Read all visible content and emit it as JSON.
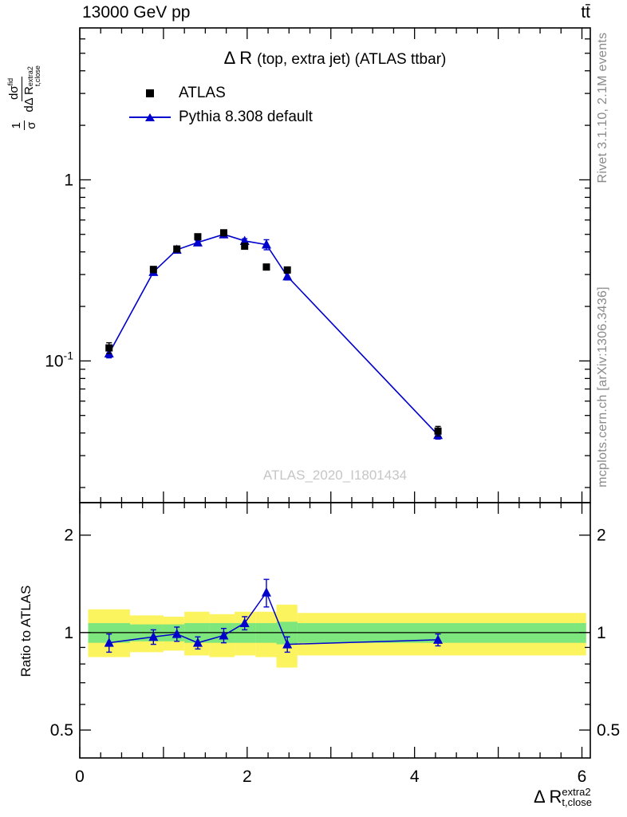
{
  "header": {
    "left_title": "13000 GeV pp",
    "right_title": "tt̄"
  },
  "captions": {
    "rivet": "Rivet 3.1.10,  2.1M events",
    "mcplots": "mcplots.cern.ch [arXiv:1306.3436]"
  },
  "main": {
    "title_symbol": "Δ R",
    "title_rest": "(top, extra jet) (ATLAS ttbar)",
    "watermark": "ATLAS_2020_I1801434",
    "legend": [
      {
        "label": "ATLAS",
        "marker": "black-square"
      },
      {
        "label": "Pythia 8.308 default",
        "marker": "blue-line-triangle"
      }
    ]
  },
  "ratio": {
    "ylabel": "Ratio to ATLAS"
  },
  "axis_labels": {
    "y_frac1_num": "1",
    "y_frac1_den": "σ",
    "y_frac2_num_base": "dσ",
    "y_frac2_num_sup": "fid",
    "y_frac2_den_base": "dΔ R",
    "y_frac2_den_sub": "t,close",
    "y_frac2_den_sup": "extra2",
    "x_base": "Δ R",
    "x_sub": "t,close",
    "x_sup": "extra2"
  },
  "colors": {
    "pythia": "#0000cd",
    "atlas": "#000000",
    "yellow_band": "#fcf45f",
    "green_band": "#7de67d",
    "watermark": "#c6c6c6",
    "caption_gray": "#8a8a8a"
  },
  "chart_data": {
    "type": "line",
    "title": "Δ R (top, extra jet) (ATLAS ttbar)",
    "xlabel": "Δ R_t,close^extra2",
    "ylabel": "1/σ dσ^fid/dΔ R_t,close^extra2",
    "xlim": [
      0,
      6.1
    ],
    "x": [
      0.35,
      0.88,
      1.16,
      1.41,
      1.72,
      1.97,
      2.23,
      2.48,
      4.28
    ],
    "xticks": {
      "labeled": [
        0,
        2,
        4,
        6
      ],
      "major_step": 1,
      "minor_step": 0.25
    },
    "main_panel": {
      "yscale": "log",
      "ylim": [
        0.0165,
        6.9
      ],
      "yticks_labeled": [
        {
          "v": 1,
          "label": "1"
        },
        {
          "v": 0.1,
          "label": "10^-1"
        }
      ],
      "series": [
        {
          "name": "ATLAS",
          "marker": "square",
          "color": "#000000",
          "values": [
            0.118,
            0.32,
            0.415,
            0.485,
            0.51,
            0.43,
            0.33,
            0.318,
            0.041
          ],
          "errors": [
            0.008,
            0.012,
            0.014,
            0.014,
            0.014,
            0.013,
            0.012,
            0.012,
            0.0025
          ]
        },
        {
          "name": "Pythia 8.308 default",
          "marker": "triangle",
          "color": "#0000cd",
          "values": [
            0.11,
            0.31,
            0.411,
            0.451,
            0.5,
            0.46,
            0.439,
            0.293,
            0.039
          ],
          "errors": [
            0.006,
            0.009,
            0.01,
            0.011,
            0.011,
            0.013,
            0.028,
            0.013,
            0.002
          ]
        }
      ]
    },
    "ratio_panel": {
      "yscale": "log",
      "ylim": [
        0.41,
        2.52
      ],
      "yticks_labeled": [
        {
          "v": 0.5,
          "label": "0.5"
        },
        {
          "v": 1,
          "label": "1"
        },
        {
          "v": 2,
          "label": "2"
        }
      ],
      "ratio_values": [
        0.93,
        0.97,
        0.99,
        0.93,
        0.98,
        1.07,
        1.33,
        0.92,
        0.95
      ],
      "ratio_errors": [
        0.06,
        0.05,
        0.05,
        0.04,
        0.05,
        0.05,
        0.13,
        0.05,
        0.04
      ],
      "band_edges": [
        0.1,
        0.6,
        1.0,
        1.25,
        1.55,
        1.85,
        2.1,
        2.35,
        2.6,
        6.05
      ],
      "yellow_lo": [
        0.84,
        0.87,
        0.88,
        0.85,
        0.84,
        0.85,
        0.84,
        0.78,
        0.85
      ],
      "yellow_hi": [
        1.18,
        1.13,
        1.12,
        1.16,
        1.14,
        1.16,
        1.16,
        1.22,
        1.15
      ],
      "green_lo": [
        0.93,
        0.94,
        0.94,
        0.93,
        0.93,
        0.93,
        0.93,
        0.92,
        0.93
      ],
      "green_hi": [
        1.07,
        1.06,
        1.06,
        1.07,
        1.07,
        1.07,
        1.07,
        1.08,
        1.07
      ]
    }
  }
}
